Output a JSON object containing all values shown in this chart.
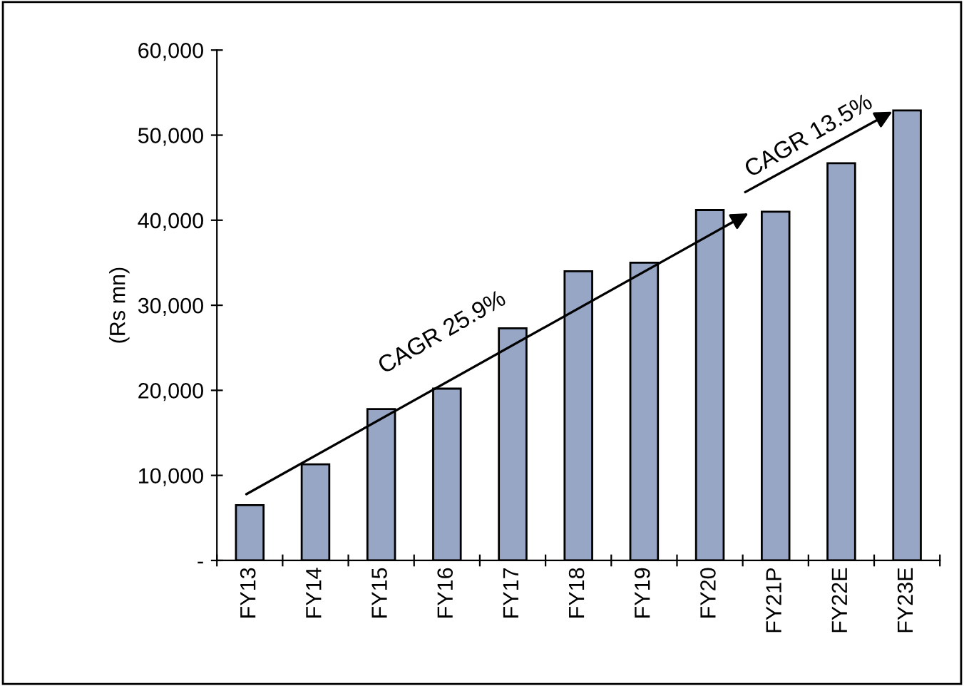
{
  "chart_data": {
    "type": "bar",
    "ylabel": "(Rs mn)",
    "categories": [
      "FY13",
      "FY14",
      "FY15",
      "FY16",
      "FY17",
      "FY18",
      "FY19",
      "FY20",
      "FY21P",
      "FY22E",
      "FY23E"
    ],
    "values": [
      6500,
      11300,
      17800,
      20200,
      27300,
      34000,
      35000,
      41200,
      41000,
      46700,
      52900
    ],
    "color": "#97a6c4",
    "ylim": [
      0,
      60000
    ],
    "yticks": [
      {
        "value": 0,
        "label": "-"
      },
      {
        "value": 10000,
        "label": "10,000"
      },
      {
        "value": 20000,
        "label": "20,000"
      },
      {
        "value": 30000,
        "label": "30,000"
      },
      {
        "value": 40000,
        "label": "40,000"
      },
      {
        "value": 50000,
        "label": "50,000"
      },
      {
        "value": 60000,
        "label": "60,000"
      }
    ],
    "annotations": [
      "CAGR 25.9%",
      "CAGR 13.5%"
    ],
    "grid": false
  }
}
